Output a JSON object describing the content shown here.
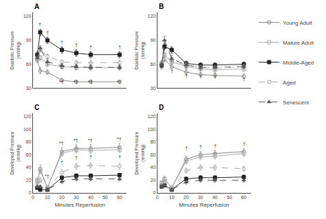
{
  "chart_data": [
    {
      "type": "line",
      "title": "A",
      "ylabel": "Diastolic Pressure\n(mmHg)",
      "x": [
        3,
        5,
        10,
        20,
        30,
        40,
        60
      ],
      "xlim": [
        0,
        65
      ],
      "xticks": [
        0,
        10,
        20,
        30,
        40,
        50,
        60
      ],
      "ylim": [
        30,
        125
      ],
      "yticks": [
        30,
        60,
        90,
        120
      ],
      "grid": false,
      "tick_labels": "y",
      "legend": "right",
      "series": [
        {
          "name": "Young Adult",
          "color": "#888888",
          "marker": "circle-open",
          "line_style": "solid",
          "values": [
            65,
            52,
            50,
            40,
            38,
            38,
            38
          ],
          "errors": [
            3,
            4,
            3,
            2,
            2,
            2,
            2
          ]
        },
        {
          "name": "Mature Adult",
          "color": "#aaaaaa",
          "marker": "square-open",
          "line_style": "solid",
          "values": [
            70,
            68,
            60,
            57,
            56,
            56,
            56
          ],
          "errors": [
            3,
            3,
            3,
            3,
            3,
            3,
            3
          ]
        },
        {
          "name": "Middle-Aged",
          "color": "#222222",
          "marker": "square",
          "line_style": "solid",
          "values": [
            72,
            100,
            90,
            78,
            74,
            72,
            72
          ],
          "errors": [
            4,
            4,
            4,
            4,
            4,
            4,
            4
          ]
        },
        {
          "name": "Aged",
          "color": "#aaaaaa",
          "marker": "circle-open",
          "line_style": "dashed",
          "values": [
            65,
            78,
            70,
            63,
            62,
            62,
            62
          ],
          "errors": [
            3,
            3,
            3,
            3,
            3,
            3,
            3
          ]
        },
        {
          "name": "Senescent",
          "color": "#555555",
          "marker": "triangle-up",
          "line_style": "dashed",
          "values": [
            68,
            80,
            63,
            58,
            57,
            56,
            56
          ],
          "errors": [
            3,
            3,
            4,
            3,
            3,
            3,
            3
          ]
        }
      ],
      "annotations": [
        {
          "x": 20,
          "y": 33,
          "text": "*†"
        },
        {
          "x": 30,
          "y": 33,
          "text": "*†"
        },
        {
          "x": 40,
          "y": 33,
          "text": "*†"
        },
        {
          "x": 60,
          "y": 33,
          "text": "*†"
        },
        {
          "x": 5,
          "y": 105,
          "text": "†"
        },
        {
          "x": 10,
          "y": 95,
          "text": "†"
        },
        {
          "x": 20,
          "y": 83,
          "text": "†"
        },
        {
          "x": 30,
          "y": 79,
          "text": "†"
        },
        {
          "x": 40,
          "y": 77,
          "text": "†"
        },
        {
          "x": 60,
          "y": 77,
          "text": "†"
        }
      ]
    },
    {
      "type": "line",
      "title": "B",
      "ylabel": "Diastolic Pressure\n(mmHg)",
      "x": [
        3,
        5,
        10,
        20,
        30,
        40,
        60
      ],
      "xlim": [
        0,
        65
      ],
      "xticks": [
        0,
        10,
        20,
        30,
        40,
        50,
        60
      ],
      "ylim": [
        30,
        125
      ],
      "yticks": [
        30,
        60,
        90,
        120
      ],
      "grid": false,
      "tick_labels": "y",
      "series": [
        {
          "name": "Young Adult",
          "color": "#888888",
          "marker": "circle-open",
          "line_style": "solid",
          "values": [
            57,
            66,
            57,
            50,
            47,
            46,
            45
          ],
          "errors": [
            3,
            3,
            3,
            3,
            3,
            3,
            3
          ]
        },
        {
          "name": "Mature Adult",
          "color": "#aaaaaa",
          "marker": "square-open",
          "line_style": "solid",
          "values": [
            61,
            72,
            63,
            57,
            54,
            53,
            54
          ],
          "errors": [
            3,
            3,
            3,
            3,
            3,
            3,
            3
          ]
        },
        {
          "name": "Middle-Aged",
          "color": "#222222",
          "marker": "square",
          "line_style": "solid",
          "values": [
            59,
            82,
            78,
            61,
            59,
            59,
            60
          ],
          "errors": [
            3,
            4,
            4,
            3,
            3,
            3,
            3
          ]
        },
        {
          "name": "Aged",
          "color": "#aaaaaa",
          "marker": "circle-open",
          "line_style": "dashed",
          "values": [
            62,
            71,
            64,
            59,
            56,
            55,
            57
          ],
          "errors": [
            3,
            3,
            3,
            3,
            3,
            3,
            3
          ]
        },
        {
          "name": "Senescent",
          "color": "#555555",
          "marker": "triangle-up",
          "line_style": "dashed",
          "values": [
            59,
            90,
            67,
            59,
            56,
            56,
            57
          ],
          "errors": [
            3,
            5,
            4,
            3,
            3,
            3,
            3
          ]
        }
      ],
      "annotations": [
        {
          "x": 10,
          "y": 47,
          "text": "†"
        },
        {
          "x": 20,
          "y": 41,
          "text": "†"
        },
        {
          "x": 30,
          "y": 40,
          "text": "†"
        },
        {
          "x": 40,
          "y": 40,
          "text": "†"
        },
        {
          "x": 60,
          "y": 36,
          "text": "†"
        }
      ]
    },
    {
      "type": "line",
      "title": "C",
      "ylabel": "Developed Pressure\n(mmHg)",
      "xlabel": "Minutes Reperfusion",
      "x": [
        3,
        5,
        10,
        20,
        30,
        40,
        60
      ],
      "xlim": [
        0,
        65
      ],
      "xticks": [
        0,
        10,
        20,
        30,
        40,
        50,
        60
      ],
      "ylim": [
        0,
        125
      ],
      "yticks": [
        0,
        20,
        40,
        60,
        80,
        100,
        120
      ],
      "grid": false,
      "series": [
        {
          "name": "Young Adult",
          "color": "#888888",
          "marker": "circle-open",
          "line_style": "solid",
          "values": [
            18,
            38,
            8,
            65,
            70,
            70,
            72
          ],
          "errors": [
            4,
            6,
            3,
            6,
            6,
            6,
            6
          ]
        },
        {
          "name": "Mature Adult",
          "color": "#aaaaaa",
          "marker": "square-open",
          "line_style": "solid",
          "values": [
            20,
            35,
            8,
            62,
            68,
            67,
            68
          ],
          "errors": [
            4,
            5,
            3,
            5,
            5,
            5,
            5
          ]
        },
        {
          "name": "Middle-Aged",
          "color": "#222222",
          "marker": "square",
          "line_style": "solid",
          "values": [
            8,
            5,
            5,
            24,
            27,
            27,
            28
          ],
          "errors": [
            2,
            2,
            2,
            3,
            3,
            3,
            3
          ]
        },
        {
          "name": "Aged",
          "color": "#aaaaaa",
          "marker": "circle-open",
          "line_style": "dashed",
          "values": [
            15,
            20,
            8,
            32,
            42,
            43,
            42
          ],
          "errors": [
            3,
            4,
            2,
            5,
            5,
            5,
            5
          ]
        },
        {
          "name": "Senescent",
          "color": "#555555",
          "marker": "triangle-up",
          "line_style": "dashed",
          "values": [
            10,
            10,
            5,
            18,
            22,
            22,
            22
          ],
          "errors": [
            2,
            2,
            2,
            3,
            3,
            3,
            3
          ]
        }
      ],
      "annotations": [
        {
          "x": 10,
          "y": 20,
          "text": "*†"
        },
        {
          "x": 20,
          "y": 72,
          "text": "*†"
        },
        {
          "x": 30,
          "y": 77,
          "text": "*†"
        },
        {
          "x": 40,
          "y": 77,
          "text": "*†"
        },
        {
          "x": 60,
          "y": 79,
          "text": "*†"
        },
        {
          "x": 20,
          "y": 42,
          "text": "†"
        },
        {
          "x": 30,
          "y": 50,
          "text": "†"
        },
        {
          "x": 40,
          "y": 51,
          "text": "†"
        },
        {
          "x": 60,
          "y": 51,
          "text": "†"
        }
      ]
    },
    {
      "type": "line",
      "title": "D",
      "ylabel": "Developed Pressure\n(mmHg)",
      "xlabel": "Minutes Reperfusion",
      "x": [
        3,
        5,
        10,
        20,
        30,
        40,
        60
      ],
      "xlim": [
        0,
        65
      ],
      "xticks": [
        0,
        10,
        20,
        30,
        40,
        50,
        60
      ],
      "ylim": [
        0,
        125
      ],
      "yticks": [
        0,
        20,
        40,
        60,
        80,
        100,
        120
      ],
      "grid": false,
      "series": [
        {
          "name": "Young Adult",
          "color": "#888888",
          "marker": "circle-open",
          "line_style": "solid",
          "values": [
            16,
            22,
            8,
            53,
            60,
            62,
            65
          ],
          "errors": [
            3,
            4,
            3,
            5,
            5,
            5,
            5
          ]
        },
        {
          "name": "Mature Adult",
          "color": "#aaaaaa",
          "marker": "square-open",
          "line_style": "solid",
          "values": [
            16,
            22,
            8,
            50,
            57,
            58,
            62
          ],
          "errors": [
            3,
            4,
            3,
            5,
            5,
            5,
            5
          ]
        },
        {
          "name": "Middle-Aged",
          "color": "#222222",
          "marker": "square",
          "line_style": "solid",
          "values": [
            10,
            12,
            5,
            22,
            24,
            24,
            25
          ],
          "errors": [
            2,
            2,
            2,
            3,
            3,
            3,
            3
          ]
        },
        {
          "name": "Aged",
          "color": "#aaaaaa",
          "marker": "circle-open",
          "line_style": "dashed",
          "values": [
            13,
            18,
            6,
            35,
            40,
            40,
            38
          ],
          "errors": [
            3,
            3,
            2,
            4,
            4,
            4,
            4
          ]
        },
        {
          "name": "Senescent",
          "color": "#555555",
          "marker": "triangle-up",
          "line_style": "dashed",
          "values": [
            10,
            12,
            5,
            17,
            20,
            20,
            20
          ],
          "errors": [
            2,
            2,
            2,
            3,
            3,
            3,
            3
          ]
        }
      ],
      "annotations": [
        {
          "x": 20,
          "y": 65,
          "text": "†"
        },
        {
          "x": 30,
          "y": 67,
          "text": "†"
        },
        {
          "x": 40,
          "y": 68,
          "text": "†"
        },
        {
          "x": 60,
          "y": 71,
          "text": "†"
        }
      ]
    }
  ]
}
